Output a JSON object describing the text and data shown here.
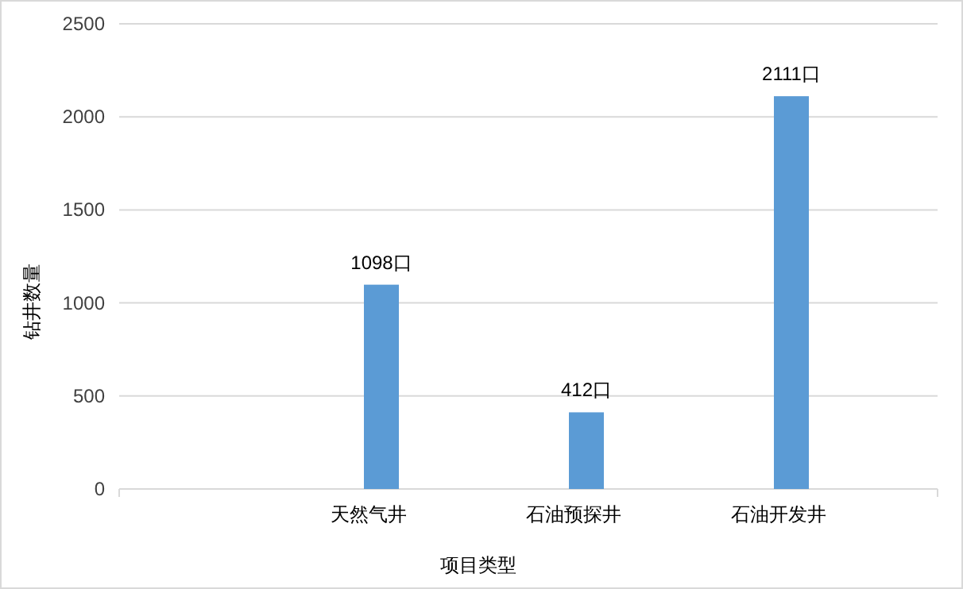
{
  "chart_data": {
    "type": "bar",
    "xlabel": "项目类型",
    "ylabel": "钻井数量",
    "categories": [
      null,
      "天然气井",
      "石油预探井",
      "石油开发井"
    ],
    "values": [
      null,
      1098,
      412,
      2111
    ],
    "value_labels": [
      null,
      "1098口",
      "412口",
      "2111口"
    ],
    "color": "#5b9bd5",
    "ylim": [
      0,
      2500
    ],
    "yticks": [
      0,
      500,
      1000,
      1500,
      2000,
      2500
    ],
    "grid": "y"
  }
}
